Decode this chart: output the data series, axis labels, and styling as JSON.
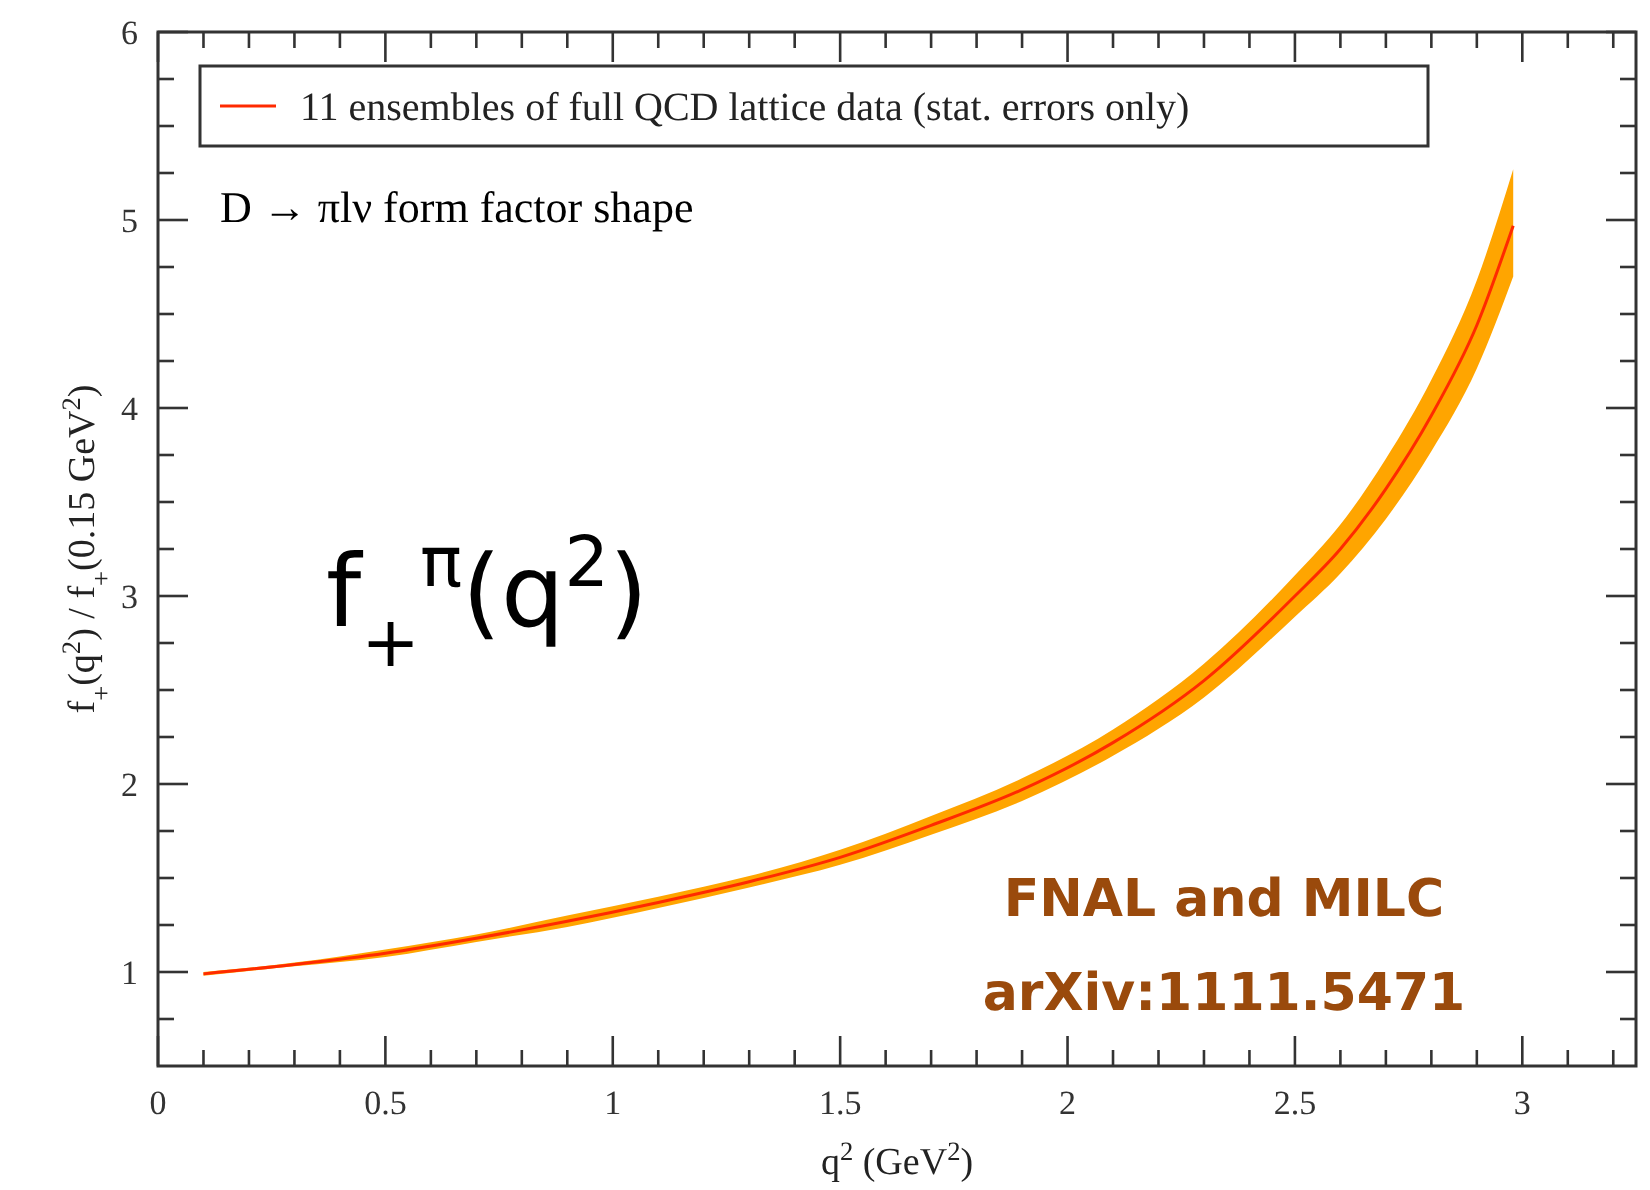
{
  "chart_data": {
    "type": "line",
    "xlabel": "q$^{2}$ (GeV$^{2}$)",
    "ylabel": "f$_{+}$(q$^{2}$) / f$_{+}$(0.15 GeV$^{2}$)",
    "annotations": [
      "D → πlν form factor shape",
      "f$_{+}$$^{π}$(q$^{2}$)",
      "FNAL and MILC",
      "arXiv:1111.5471"
    ],
    "xlim": [
      0,
      3.25
    ],
    "xticks": [
      0,
      {
        "value": 0.1,
        "label": null
      },
      {
        "value": 0.2,
        "label": null
      },
      {
        "value": 0.3,
        "label": null
      },
      {
        "value": 0.4,
        "label": null
      },
      0.5,
      {
        "value": 0.6,
        "label": null
      },
      {
        "value": 0.7,
        "label": null
      },
      {
        "value": 0.8,
        "label": null
      },
      {
        "value": 0.9,
        "label": null
      },
      1,
      {
        "value": 1.1,
        "label": null
      },
      {
        "value": 1.2,
        "label": null
      },
      {
        "value": 1.3,
        "label": null
      },
      {
        "value": 1.4,
        "label": null
      },
      1.5,
      {
        "value": 1.6,
        "label": null
      },
      {
        "value": 1.7,
        "label": null
      },
      {
        "value": 1.8,
        "label": null
      },
      {
        "value": 1.9,
        "label": null
      },
      2,
      {
        "value": 2.1,
        "label": null
      },
      {
        "value": 2.2,
        "label": null
      },
      {
        "value": 2.3,
        "label": null
      },
      {
        "value": 2.4,
        "label": null
      },
      2.5,
      {
        "value": 2.6,
        "label": null
      },
      {
        "value": 2.7,
        "label": null
      },
      {
        "value": 2.8,
        "label": null
      },
      {
        "value": 2.9,
        "label": null
      },
      3,
      {
        "value": 3.1,
        "label": null
      },
      {
        "value": 3.2,
        "label": null
      }
    ],
    "ylim": [
      0.5,
      6
    ],
    "yticks": [
      {
        "value": 0.75,
        "label": null
      },
      1,
      {
        "value": 1.25,
        "label": null
      },
      {
        "value": 1.5,
        "label": null
      },
      {
        "value": 1.75,
        "label": null
      },
      2,
      {
        "value": 2.25,
        "label": null
      },
      {
        "value": 2.5,
        "label": null
      },
      {
        "value": 2.75,
        "label": null
      },
      3,
      {
        "value": 3.25,
        "label": null
      },
      {
        "value": 3.5,
        "label": null
      },
      {
        "value": 3.75,
        "label": null
      },
      4,
      {
        "value": 4.25,
        "label": null
      },
      {
        "value": 4.5,
        "label": null
      },
      {
        "value": 4.75,
        "label": null
      },
      5,
      {
        "value": 5.25,
        "label": null
      },
      {
        "value": 5.5,
        "label": null
      },
      {
        "value": 5.75,
        "label": null
      },
      6
    ],
    "legend": "top left",
    "marker": "none",
    "line_style": "solid",
    "series": [
      {
        "name": "11 ensembles of full QCD lattice data (stat. errors only)",
        "color": "#ff2a00",
        "x": [
          0.1,
          0.3,
          0.5,
          0.7,
          0.9,
          1.1,
          1.3,
          1.5,
          1.7,
          1.9,
          2.1,
          2.3,
          2.5,
          2.6,
          2.7,
          2.8,
          2.9,
          2.98
        ],
        "values": [
          0.99,
          1.04,
          1.1,
          1.18,
          1.27,
          1.37,
          1.48,
          1.61,
          1.78,
          1.97,
          2.22,
          2.55,
          3.0,
          3.25,
          3.57,
          3.96,
          4.44,
          4.97
        ],
        "lower": [
          0.98,
          1.03,
          1.08,
          1.16,
          1.24,
          1.34,
          1.45,
          1.57,
          1.73,
          1.91,
          2.15,
          2.46,
          2.89,
          3.12,
          3.41,
          3.77,
          4.21,
          4.7
        ],
        "upper": [
          1.0,
          1.05,
          1.12,
          1.2,
          1.3,
          1.4,
          1.51,
          1.65,
          1.83,
          2.03,
          2.29,
          2.64,
          3.11,
          3.38,
          3.73,
          4.15,
          4.68,
          5.27
        ]
      }
    ]
  }
}
